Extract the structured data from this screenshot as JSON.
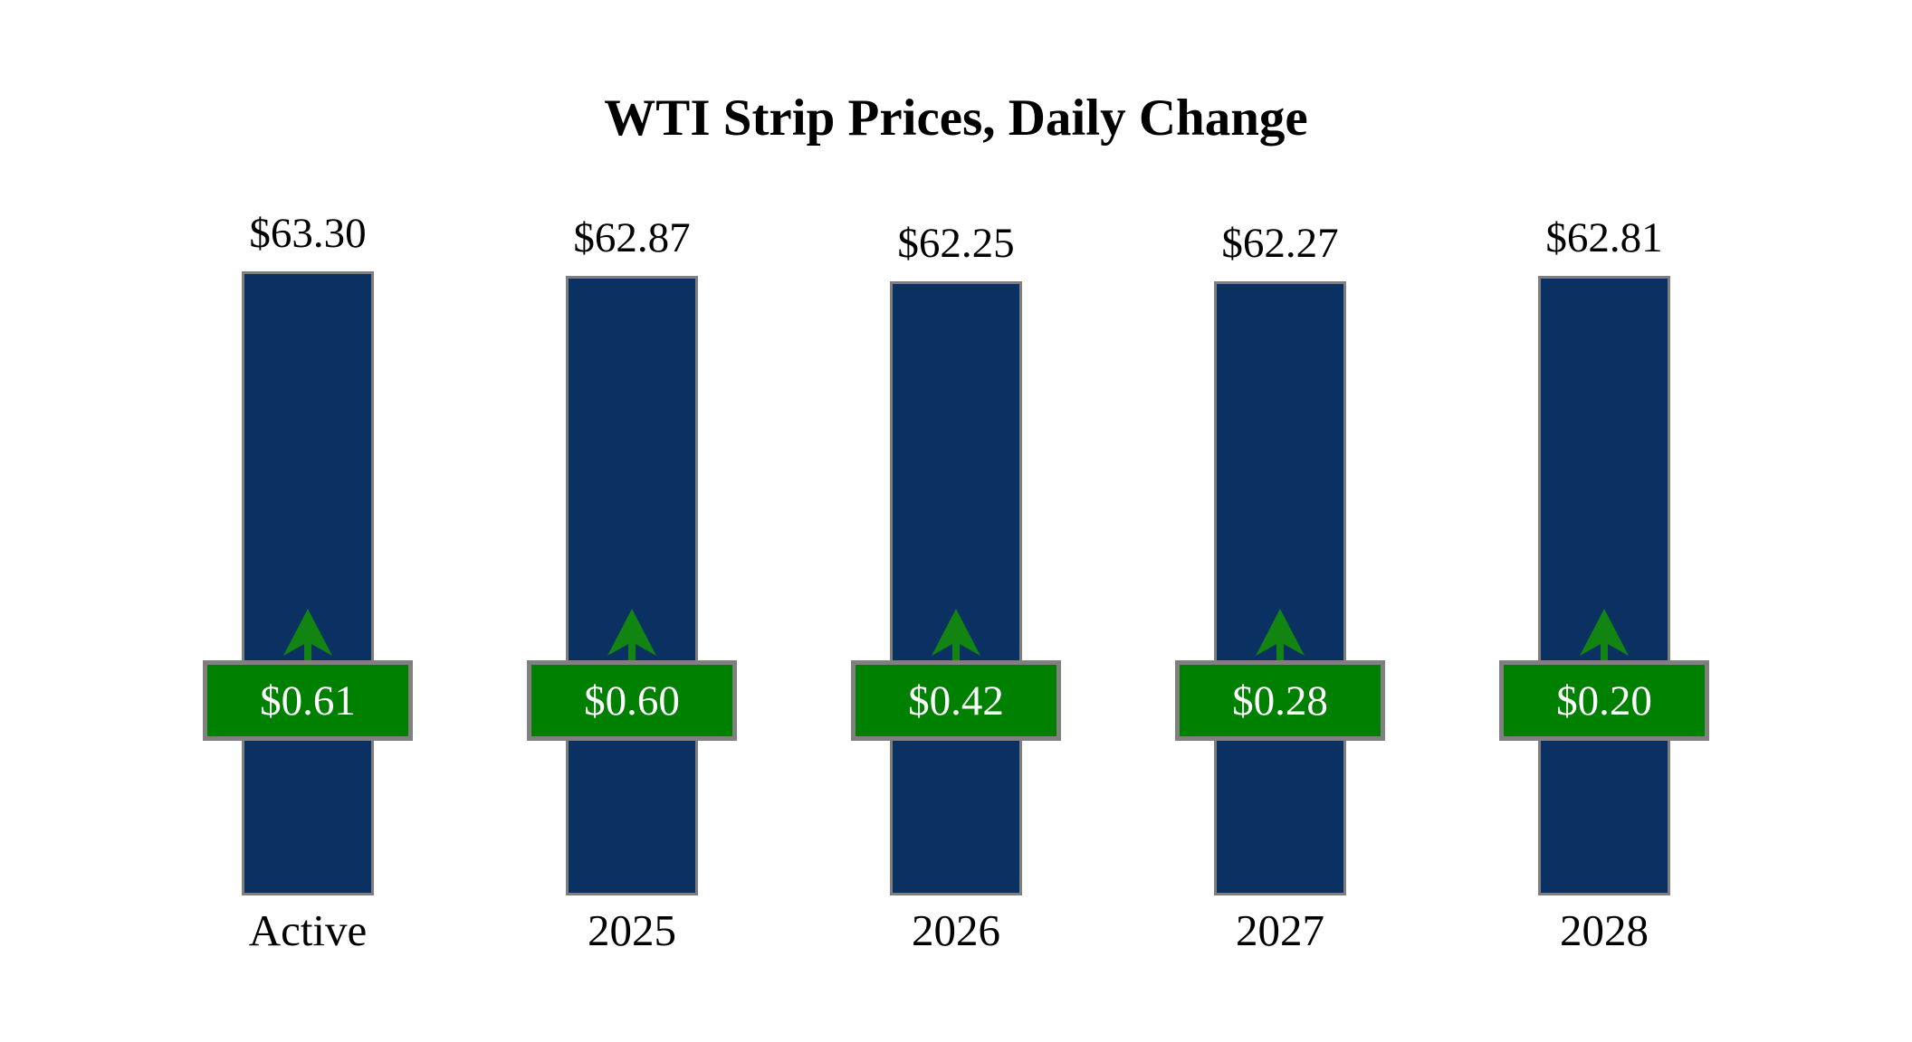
{
  "title": "WTI Strip Prices, Daily Change",
  "colors": {
    "background": "#ffffff",
    "bar_fill": "#0a3161",
    "bar_border": "#7f7f7f",
    "badge_fill": "#008000",
    "badge_border": "#808080",
    "badge_text": "#ffffff",
    "arrow": "#128412",
    "text": "#000000"
  },
  "chart_data": {
    "type": "bar",
    "title": "WTI Strip Prices, Daily Change",
    "categories": [
      "Active",
      "2025",
      "2026",
      "2027",
      "2028"
    ],
    "series": [
      {
        "name": "Strip Price",
        "values": [
          63.3,
          62.87,
          62.25,
          62.27,
          62.81
        ],
        "labels": [
          "$63.30",
          "$62.87",
          "$62.25",
          "$62.27",
          "$62.81"
        ],
        "label_position": "above-bar"
      },
      {
        "name": "Daily Change",
        "values": [
          0.61,
          0.6,
          0.42,
          0.28,
          0.2
        ],
        "labels": [
          "$0.61",
          "$0.60",
          "$0.42",
          "$0.28",
          "$0.20"
        ],
        "direction": "up",
        "label_position": "badge-on-bar"
      }
    ],
    "xlabel": "",
    "ylabel": "",
    "ylim": [
      0,
      63.3
    ],
    "grid": false,
    "legend": false,
    "annotations": "green up-arrow icon above each daily-change badge"
  }
}
